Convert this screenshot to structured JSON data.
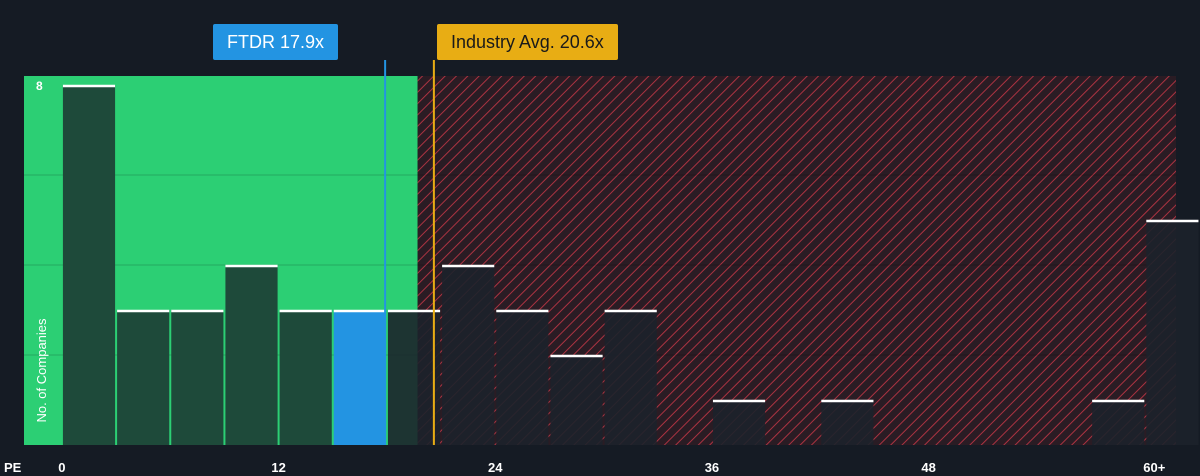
{
  "colors": {
    "background": "#151b24",
    "undervalued_zone": "#2ccf74",
    "overvalued_hatch": "#d63a4b",
    "bar": "#1e4a3a",
    "bar_dark": "#1c222b",
    "highlight_bar": "#2394e2",
    "company_line": "#2394e2",
    "industry_line": "#e8ad14"
  },
  "callouts": {
    "company": "FTDR 17.9x",
    "industry": "Industry Avg. 20.6x"
  },
  "chart_data": {
    "type": "bar",
    "xlabel": "PE",
    "ylabel": "No. of Companies",
    "xlim": [
      -2.1,
      61.7
    ],
    "ylim": [
      0,
      8.2
    ],
    "x_ticks": [
      {
        "value": 0,
        "label": "0"
      },
      {
        "value": 12,
        "label": "12"
      },
      {
        "value": 24,
        "label": "24"
      },
      {
        "value": 36,
        "label": "36"
      },
      {
        "value": 48,
        "label": "48"
      },
      {
        "value": 60.5,
        "label": "60+"
      }
    ],
    "y_ticks": [
      {
        "value": 8,
        "label": "8"
      }
    ],
    "bin_width": 3,
    "bins": [
      {
        "start": 0,
        "count": 8
      },
      {
        "start": 3,
        "count": 3
      },
      {
        "start": 6,
        "count": 3
      },
      {
        "start": 9,
        "count": 4
      },
      {
        "start": 12,
        "count": 3
      },
      {
        "start": 15,
        "count": 3,
        "highlight": true
      },
      {
        "start": 18,
        "count": 3
      },
      {
        "start": 21,
        "count": 4
      },
      {
        "start": 24,
        "count": 3
      },
      {
        "start": 27,
        "count": 2
      },
      {
        "start": 30,
        "count": 3
      },
      {
        "start": 36,
        "count": 1
      },
      {
        "start": 42,
        "count": 1
      },
      {
        "start": 57,
        "count": 1
      },
      {
        "start": 60,
        "count": 5
      }
    ],
    "company_pe": 17.9,
    "industry_avg_pe": 20.6,
    "undervalued_zone_end": 19.7,
    "grid": true
  }
}
